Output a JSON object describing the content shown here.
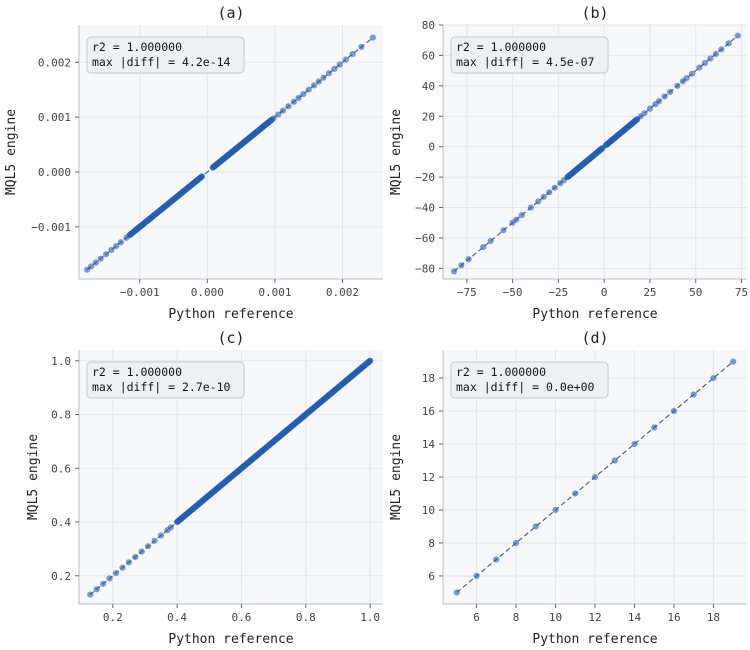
{
  "colors": {
    "background": "#f6f8fa",
    "grid": "#e3e7ec",
    "spine": "#b9c0c8",
    "points": "#1f5fbf",
    "identity_line": "#4a5566",
    "annotation_box": "#eef1f4"
  },
  "chart_data": [
    {
      "type": "scatter",
      "title": "(a)",
      "xlabel": "Python reference",
      "ylabel": "MQL5 engine",
      "xlim": [
        -0.0019,
        0.0026
      ],
      "ylim": [
        -0.00195,
        0.00268
      ],
      "xticks": [
        -0.001,
        0.0,
        0.001,
        0.002
      ],
      "xtick_labels": [
        "−0.001",
        "0.000",
        "0.001",
        "0.002"
      ],
      "yticks": [
        -0.001,
        0.0,
        0.001,
        0.002
      ],
      "ytick_labels": [
        "−0.001",
        "0.000",
        "0.001",
        "0.002"
      ],
      "annotation": [
        "r2 = 1.000000",
        "max |diff| = 4.2e-14"
      ],
      "identity_line": [
        -0.00178,
        0.00245
      ],
      "grid": true,
      "points": {
        "dense": [
          [
            -0.00115,
            -8e-05
          ],
          [
            8e-05,
            0.00095
          ]
        ],
        "sparse": [
          -0.00178,
          -0.00172,
          -0.00165,
          -0.00158,
          -0.0015,
          -0.00142,
          -0.00135,
          -0.00128,
          -0.0012,
          -0.00105,
          0.00098,
          0.00105,
          0.00112,
          0.0012,
          0.00128,
          0.00135,
          0.00142,
          0.0015,
          0.00158,
          0.00165,
          0.00172,
          0.0018,
          0.00188,
          0.00196,
          0.00205,
          0.00215,
          0.00228,
          0.00245
        ]
      }
    },
    {
      "type": "scatter",
      "title": "(b)",
      "xlabel": "Python reference",
      "ylabel": "MQL5 engine",
      "xlim": [
        -88,
        78
      ],
      "ylim": [
        -87,
        80
      ],
      "xticks": [
        -75,
        -50,
        -25,
        0,
        25,
        50,
        75
      ],
      "xtick_labels": [
        "−75",
        "−50",
        "−25",
        "0",
        "25",
        "50",
        "75"
      ],
      "yticks": [
        -80,
        -60,
        -40,
        -20,
        0,
        20,
        40,
        60,
        80
      ],
      "ytick_labels": [
        "−80",
        "−60",
        "−40",
        "−20",
        "0",
        "20",
        "40",
        "60",
        "80"
      ],
      "annotation": [
        "r2 = 1.000000",
        "max |diff| = 4.5e-07"
      ],
      "identity_line": [
        -82,
        73
      ],
      "grid": true,
      "points": {
        "dense": [
          [
            -20,
            -1
          ],
          [
            1,
            18
          ]
        ],
        "sparse": [
          -82,
          -78,
          -74,
          -66,
          -62,
          -55,
          -50,
          -48,
          -45,
          -40,
          -36,
          -33,
          -30,
          -27,
          -24,
          -22,
          20,
          22,
          25,
          28,
          30,
          33,
          36,
          40,
          43,
          45,
          48,
          52,
          55,
          58,
          61,
          64,
          68,
          73
        ]
      }
    },
    {
      "type": "scatter",
      "title": "(c)",
      "xlabel": "Python reference",
      "ylabel": "MQL5 engine",
      "xlim": [
        0.095,
        1.04
      ],
      "ylim": [
        0.095,
        1.04
      ],
      "xticks": [
        0.2,
        0.4,
        0.6,
        0.8,
        1.0
      ],
      "xtick_labels": [
        "0.2",
        "0.4",
        "0.6",
        "0.8",
        "1.0"
      ],
      "yticks": [
        0.2,
        0.4,
        0.6,
        0.8,
        1.0
      ],
      "ytick_labels": [
        "0.2",
        "0.4",
        "0.6",
        "0.8",
        "1.0"
      ],
      "annotation": [
        "r2 = 1.000000",
        "max |diff| = 2.7e-10"
      ],
      "identity_line": [
        0.13,
        1.0
      ],
      "grid": true,
      "points": {
        "dense": [
          [
            0.4,
            1.0
          ]
        ],
        "sparse": [
          0.13,
          0.15,
          0.17,
          0.19,
          0.21,
          0.23,
          0.25,
          0.27,
          0.29,
          0.31,
          0.33,
          0.35,
          0.37,
          0.38
        ]
      }
    },
    {
      "type": "scatter",
      "title": "(d)",
      "xlabel": "Python reference",
      "ylabel": "MQL5 engine",
      "xlim": [
        4.3,
        19.7
      ],
      "ylim": [
        4.3,
        19.7
      ],
      "xticks": [
        6,
        8,
        10,
        12,
        14,
        16,
        18
      ],
      "xtick_labels": [
        "6",
        "8",
        "10",
        "12",
        "14",
        "16",
        "18"
      ],
      "yticks": [
        6,
        8,
        10,
        12,
        14,
        16,
        18
      ],
      "ytick_labels": [
        "6",
        "8",
        "10",
        "12",
        "14",
        "16",
        "18"
      ],
      "annotation": [
        "r2 = 1.000000",
        "max |diff| = 0.0e+00"
      ],
      "identity_line": [
        5,
        19
      ],
      "grid": true,
      "points": {
        "dense": [],
        "sparse": [
          5,
          6,
          7,
          8,
          9,
          10,
          11,
          12,
          13,
          14,
          15,
          16,
          17,
          18,
          19
        ]
      }
    }
  ]
}
